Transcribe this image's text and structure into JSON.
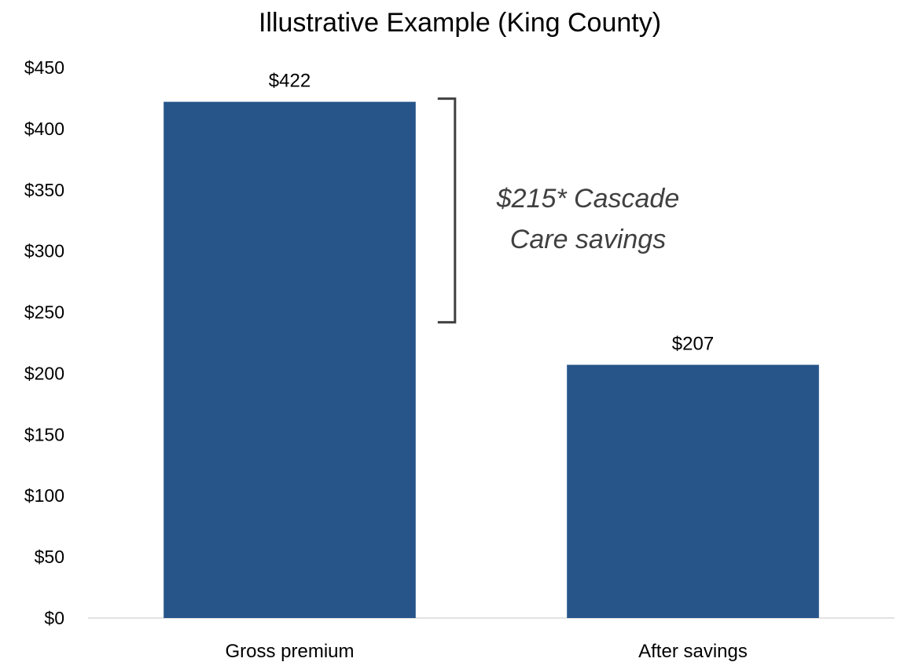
{
  "chart_data": {
    "type": "bar",
    "title": "Illustrative Example (King County)",
    "xlabel": "",
    "ylabel": "",
    "categories": [
      "Gross premium",
      "After savings"
    ],
    "values": [
      422,
      207
    ],
    "value_labels": [
      "$422",
      "$207"
    ],
    "ylim": [
      0,
      450
    ],
    "yticks": [
      0,
      50,
      100,
      150,
      200,
      250,
      300,
      350,
      400,
      450
    ],
    "ytick_labels": [
      "$0",
      "$50",
      "$100",
      "$150",
      "$200",
      "$250",
      "$300",
      "$350",
      "$400",
      "$450"
    ],
    "grid": false,
    "legend": "none",
    "bar_color": "#27558A",
    "annotation": {
      "text_lines": [
        "$215* Cascade",
        "Care savings"
      ],
      "range": [
        245,
        422
      ]
    }
  }
}
